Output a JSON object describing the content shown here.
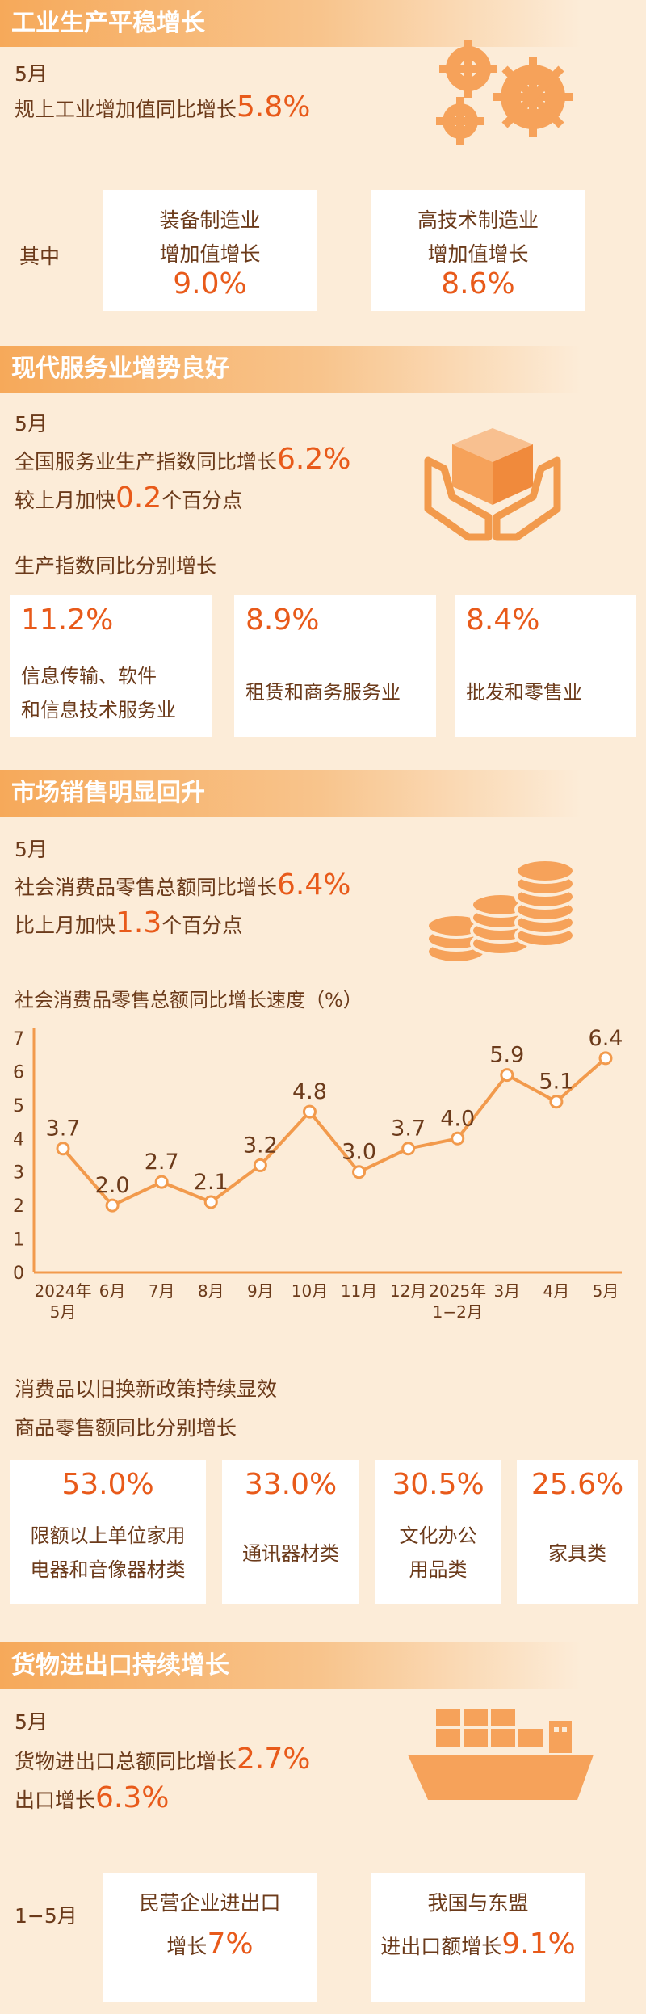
{
  "sec1": {
    "title": "工业生产平稳增长",
    "month": "5月",
    "line_a": "规上工业增加值同比增长",
    "line_b": "5.8%",
    "qizhong": "其中",
    "arrow1": {
      "l1": "装备制造业",
      "l2": "增加值增长",
      "val": "9.0%"
    },
    "arrow2": {
      "l1": "高技术制造业",
      "l2": "增加值增长",
      "val": "8.6%"
    },
    "icon": "gears-icon"
  },
  "sec2": {
    "title": "现代服务业增势良好",
    "month": "5月",
    "l1a": "全国服务业生产指数同比增长",
    "l1b": "6.2%",
    "l2a": "较上月加快",
    "l2b": "0.2",
    "l2c": "个百分点",
    "sub": "生产指数同比分别增长",
    "boxes": [
      {
        "val": "11.2%",
        "l1": "信息传输、软件",
        "l2": "和信息技术服务业"
      },
      {
        "val": "8.9%",
        "l1": "租赁和商务服务业"
      },
      {
        "val": "8.4%",
        "l1": "批发和零售业"
      }
    ],
    "icon": "hands-box-icon"
  },
  "sec3": {
    "title": "市场销售明显回升",
    "month": "5月",
    "l1a": "社会消费品零售总额同比增长",
    "l1b": "6.4%",
    "l2a": "比上月加快",
    "l2b": "1.3",
    "l2c": "个百分点",
    "icon": "coins-icon",
    "sub1": "消费品以旧换新政策持续显效",
    "sub2": "商品零售额同比分别增长",
    "boxes": [
      {
        "val": "53.0%",
        "l1": "限额以上单位家用",
        "l2": "电器和音像器材类"
      },
      {
        "val": "33.0%",
        "l1": "通讯器材类"
      },
      {
        "val": "30.5%",
        "l1": "文化办公",
        "l2": "用品类"
      },
      {
        "val": "25.6%",
        "l1": "家具类"
      }
    ]
  },
  "chart_data": {
    "type": "line",
    "title": "社会消费品零售总额同比增长速度（%）",
    "categories": [
      "2024年5月",
      "6月",
      "7月",
      "8月",
      "9月",
      "10月",
      "11月",
      "12月",
      "2025年1-2月",
      "3月",
      "4月",
      "5月"
    ],
    "tick_labels": [
      [
        "2024年",
        "5月"
      ],
      [
        "6月"
      ],
      [
        "7月"
      ],
      [
        "8月"
      ],
      [
        "9月"
      ],
      [
        "10月"
      ],
      [
        "11月"
      ],
      [
        "12月"
      ],
      [
        "2025年",
        "1−2月"
      ],
      [
        "3月"
      ],
      [
        "4月"
      ],
      [
        "5月"
      ]
    ],
    "values": [
      3.7,
      2.0,
      2.7,
      2.1,
      3.2,
      4.8,
      3.0,
      3.7,
      4.0,
      5.9,
      5.1,
      6.4
    ],
    "value_labels": [
      "3.7",
      "2.0",
      "2.7",
      "2.1",
      "3.2",
      "4.8",
      "3.0",
      "3.7",
      "4.0",
      "5.9",
      "5.1",
      "6.4"
    ],
    "ylim": [
      0,
      7
    ],
    "yticks": [
      "0",
      "1",
      "2",
      "3",
      "4",
      "5",
      "6",
      "7"
    ],
    "grid": false,
    "color": "#f29a4c"
  },
  "sec4": {
    "title": "货物进出口持续增长",
    "month": "5月",
    "l1a": "货物进出口总额同比增长",
    "l1b": "2.7%",
    "l2a": "出口增长",
    "l2b": "6.3%",
    "range": "1−5月",
    "arrow1": {
      "l1": "民营企业进出口",
      "l2a": "增长",
      "l2b": "7%"
    },
    "arrow2": {
      "l1": "我国与东盟",
      "l2a": "进出口额增长",
      "l2b": "9.1%"
    },
    "icon": "cargo-ship-icon"
  }
}
